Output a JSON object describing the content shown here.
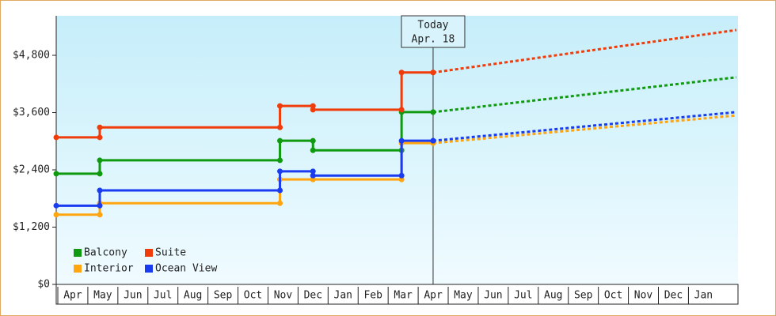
{
  "chart_data": {
    "type": "step",
    "categories": [
      "Apr",
      "May",
      "Jun",
      "Jul",
      "Aug",
      "Sep",
      "Oct",
      "Nov",
      "Dec",
      "Jan",
      "Feb",
      "Mar",
      "Apr",
      "May",
      "Jun",
      "Jul",
      "Aug",
      "Sep",
      "Oct",
      "Nov",
      "Dec",
      "Jan"
    ],
    "x": [
      0,
      1.45,
      7.45,
      8.55,
      11.5,
      12.55
    ],
    "projection_x": [
      22.65
    ],
    "xlim": [
      0,
      22.65
    ],
    "ylim": [
      0,
      5600
    ],
    "yticks": [
      {
        "value": 0,
        "label": "$0"
      },
      {
        "value": 1200,
        "label": "$1,200"
      },
      {
        "value": 2400,
        "label": "$2,400"
      },
      {
        "value": 3600,
        "label": "$3,600"
      },
      {
        "value": 4800,
        "label": "$4,800"
      }
    ],
    "today": {
      "x": 12.55,
      "title": "Today",
      "date": "Apr. 18"
    },
    "series": [
      {
        "name": "Balcony",
        "color": "#109a10",
        "values": [
          2320,
          2600,
          3010,
          2810,
          3610,
          3610
        ],
        "projection": [
          4340
        ]
      },
      {
        "name": "Suite",
        "color": "#f03c0a",
        "values": [
          3080,
          3290,
          3740,
          3660,
          4440,
          4440
        ],
        "projection": [
          5330
        ]
      },
      {
        "name": "Interior",
        "color": "#ffa510",
        "values": [
          1460,
          1700,
          2200,
          2200,
          2960,
          2960
        ],
        "projection": [
          3540
        ]
      },
      {
        "name": "Ocean View",
        "color": "#1a3cf0",
        "values": [
          1650,
          1970,
          2370,
          2280,
          3010,
          3010
        ],
        "projection": [
          3610
        ]
      }
    ]
  }
}
